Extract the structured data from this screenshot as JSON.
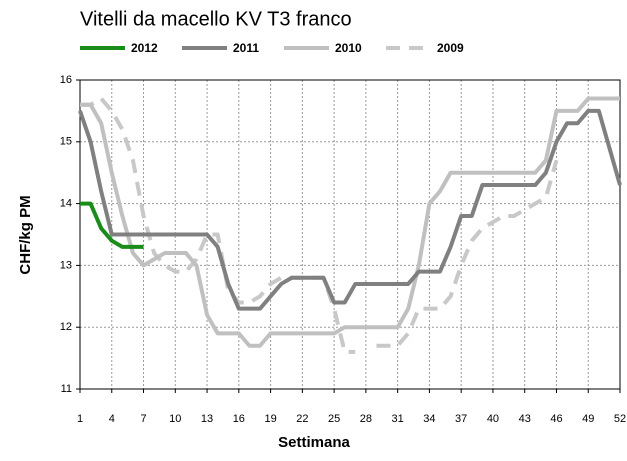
{
  "chart_data": {
    "type": "line",
    "title": "Vitelli da macello KV T3 franco",
    "xlabel": "Settimana",
    "ylabel": "CHF/kg PM",
    "x": [
      1,
      2,
      3,
      4,
      5,
      6,
      7,
      8,
      9,
      10,
      11,
      12,
      13,
      14,
      15,
      16,
      17,
      18,
      19,
      20,
      21,
      22,
      23,
      24,
      25,
      26,
      27,
      28,
      29,
      30,
      31,
      32,
      33,
      34,
      35,
      36,
      37,
      38,
      39,
      40,
      41,
      42,
      43,
      44,
      45,
      46,
      47,
      48,
      49,
      50,
      51,
      52
    ],
    "xlim": [
      1,
      52
    ],
    "xticks": [
      1,
      4,
      7,
      10,
      13,
      16,
      19,
      22,
      25,
      28,
      31,
      34,
      37,
      40,
      43,
      46,
      49,
      52
    ],
    "ylim": [
      11,
      16
    ],
    "yticks": [
      11,
      12,
      13,
      14,
      15,
      16
    ],
    "grid": true,
    "legend": "top",
    "series": [
      {
        "name": "2012",
        "color": "#1a8c1a",
        "dashed": false,
        "values": [
          14,
          14,
          13.6,
          13.4,
          13.3,
          13.3,
          13.3,
          null,
          null,
          null,
          null,
          null,
          null,
          null,
          null,
          null,
          null,
          null,
          null,
          null,
          null,
          null,
          null,
          null,
          null,
          null,
          null,
          null,
          null,
          null,
          null,
          null,
          null,
          null,
          null,
          null,
          null,
          null,
          null,
          null,
          null,
          null,
          null,
          null,
          null,
          null,
          null,
          null,
          null,
          null,
          null,
          null
        ]
      },
      {
        "name": "2011",
        "color": "#808080",
        "dashed": false,
        "values": [
          15.5,
          15.0,
          14.2,
          13.5,
          13.5,
          13.5,
          13.5,
          13.5,
          13.5,
          13.5,
          13.5,
          13.5,
          13.5,
          13.3,
          12.7,
          12.3,
          12.3,
          12.3,
          12.5,
          12.7,
          12.8,
          12.8,
          12.8,
          12.8,
          12.4,
          12.4,
          12.7,
          12.7,
          12.7,
          12.7,
          12.7,
          12.7,
          12.9,
          12.9,
          12.9,
          13.3,
          13.8,
          13.8,
          14.3,
          14.3,
          14.3,
          14.3,
          14.3,
          14.3,
          14.5,
          15.0,
          15.3,
          15.3,
          15.5,
          15.5,
          14.9,
          14.3
        ]
      },
      {
        "name": "2010",
        "color": "#c0c0c0",
        "dashed": false,
        "values": [
          15.6,
          15.6,
          15.3,
          14.5,
          13.8,
          13.2,
          13.0,
          13.1,
          13.2,
          13.2,
          13.2,
          13.0,
          12.2,
          11.9,
          11.9,
          11.9,
          11.7,
          11.7,
          11.9,
          11.9,
          11.9,
          11.9,
          11.9,
          11.9,
          11.9,
          12.0,
          12.0,
          12.0,
          12.0,
          12.0,
          12.0,
          12.3,
          13.0,
          14.0,
          14.2,
          14.5,
          14.5,
          14.5,
          14.5,
          14.5,
          14.5,
          14.5,
          14.5,
          14.5,
          14.7,
          15.5,
          15.5,
          15.5,
          15.7,
          15.7,
          15.7,
          15.7
        ]
      },
      {
        "name": "2009",
        "color": "#c8c8c8",
        "dashed": true,
        "values": [
          15.6,
          15.6,
          15.7,
          15.5,
          15.2,
          14.7,
          13.8,
          13.2,
          13.0,
          12.9,
          12.9,
          13.1,
          13.5,
          13.5,
          12.6,
          12.4,
          12.4,
          12.5,
          12.7,
          12.8,
          12.8,
          12.8,
          12.8,
          12.8,
          12.3,
          11.6,
          11.6,
          null,
          11.7,
          11.7,
          11.7,
          11.9,
          12.3,
          12.3,
          12.3,
          12.5,
          13.0,
          13.4,
          13.6,
          13.7,
          13.8,
          13.8,
          13.9,
          14.0,
          14.1,
          14.7,
          null,
          null,
          null,
          null,
          null,
          null
        ]
      }
    ]
  }
}
